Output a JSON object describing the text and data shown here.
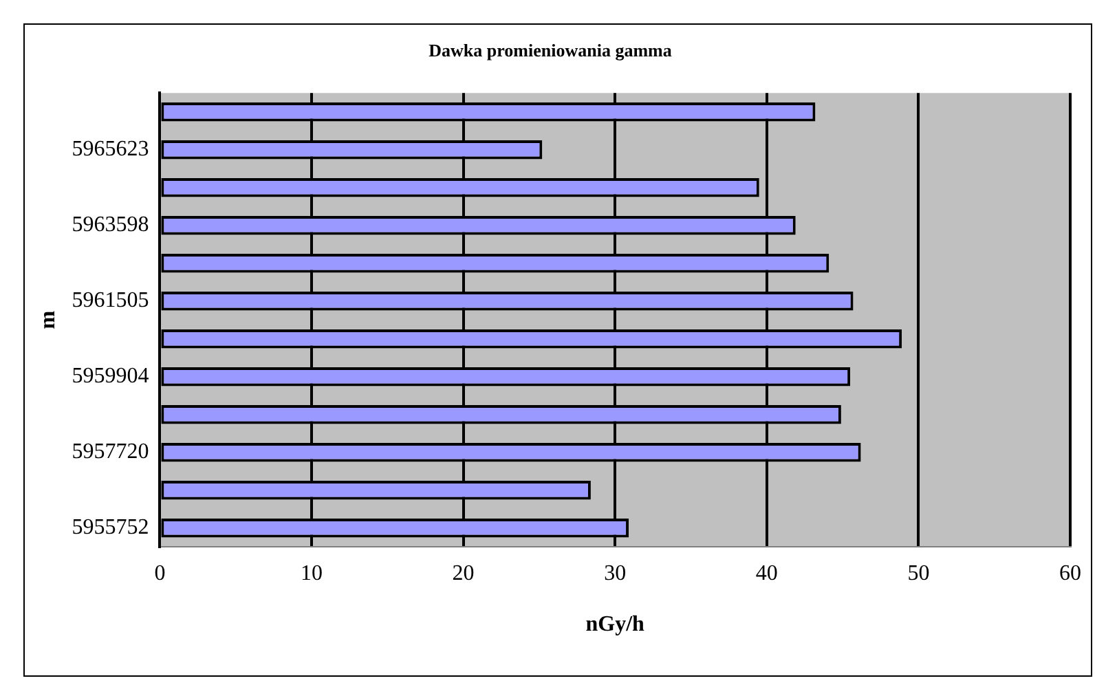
{
  "chart_data": {
    "type": "bar",
    "orientation": "horizontal",
    "title": "Dawka promieniowania gamma",
    "xlabel": "nGy/h",
    "ylabel": "m",
    "categories": [
      null,
      "5965623",
      null,
      "5963598",
      null,
      "5961505",
      null,
      "5959904",
      null,
      "5957720",
      null,
      "5955752"
    ],
    "values": [
      43.2,
      25.2,
      39.5,
      41.9,
      44.1,
      45.7,
      48.9,
      45.5,
      44.9,
      46.2,
      28.4,
      30.9
    ],
    "color": "#9999ff",
    "xlim": [
      0,
      60
    ],
    "xticks": [
      0,
      10,
      20,
      30,
      40,
      50,
      60
    ],
    "grid": "x",
    "legend": false
  }
}
